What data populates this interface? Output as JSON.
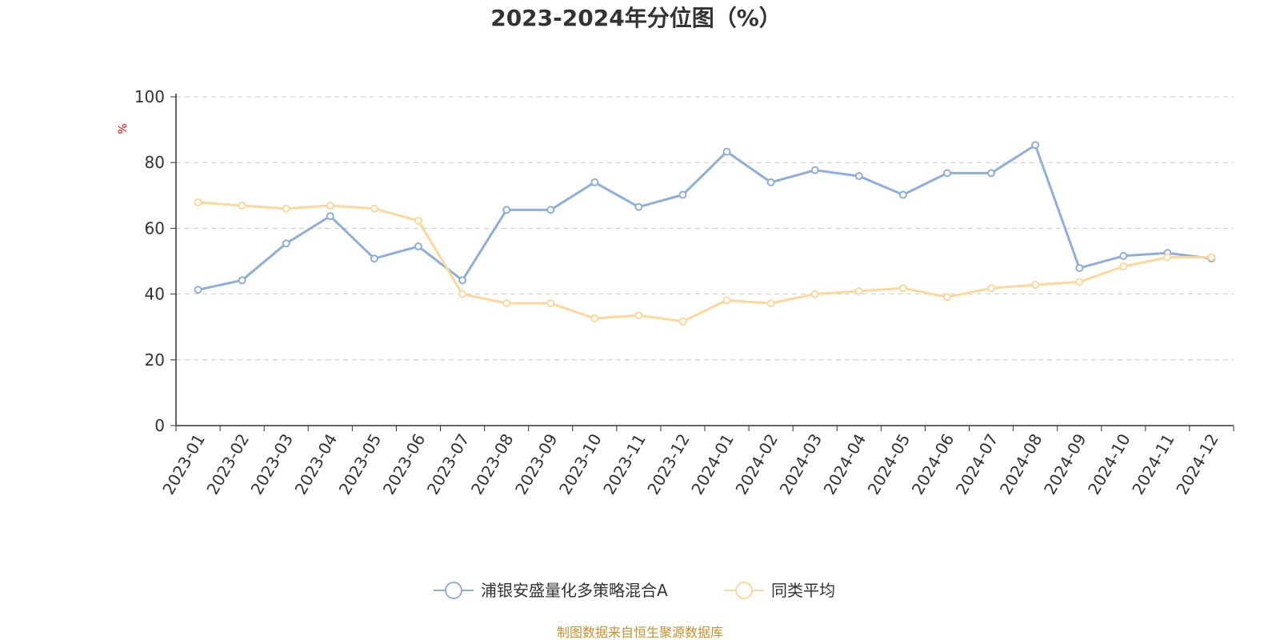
{
  "chart_data": {
    "type": "line",
    "title": "2023-2024年分位图（%）",
    "ylabel": "%",
    "ylim": [
      0,
      100
    ],
    "yticks": [
      "0",
      "20",
      "40",
      "60",
      "80",
      "100"
    ],
    "grid": true,
    "legend_position": "bottom-center",
    "categories": [
      "2023-01",
      "2023-02",
      "2023-03",
      "2023-04",
      "2023-05",
      "2023-06",
      "2023-07",
      "2023-08",
      "2023-09",
      "2023-10",
      "2023-11",
      "2023-12",
      "2024-01",
      "2024-02",
      "2024-03",
      "2024-04",
      "2024-05",
      "2024-06",
      "2024-07",
      "2024-08",
      "2024-09",
      "2024-10",
      "2024-11",
      "2024-12"
    ],
    "series": [
      {
        "name": "浦银安盛量化多策略混合A",
        "color": "#8eaedb",
        "values": [
          41.3,
          44.2,
          55.4,
          63.7,
          50.8,
          54.5,
          44.2,
          65.6,
          65.6,
          74.0,
          66.5,
          70.2,
          83.3,
          74.0,
          77.7,
          75.9,
          70.2,
          76.8,
          76.8,
          85.3,
          47.9,
          51.6,
          52.5,
          50.8
        ]
      },
      {
        "name": "同类平均",
        "color": "#fdd89a",
        "values": [
          67.9,
          66.9,
          66.0,
          66.9,
          66.0,
          62.3,
          40.0,
          37.2,
          37.2,
          32.6,
          33.5,
          31.7,
          38.1,
          37.2,
          40.0,
          40.9,
          41.8,
          39.1,
          41.8,
          42.8,
          43.7,
          48.4,
          51.2,
          51.2
        ]
      }
    ]
  },
  "source_text": "制图数据来自恒生聚源数据库",
  "colors": {
    "axis": "#333333",
    "grid": "#cccccc",
    "unit": "#ff0000",
    "source": "#c8902b"
  }
}
